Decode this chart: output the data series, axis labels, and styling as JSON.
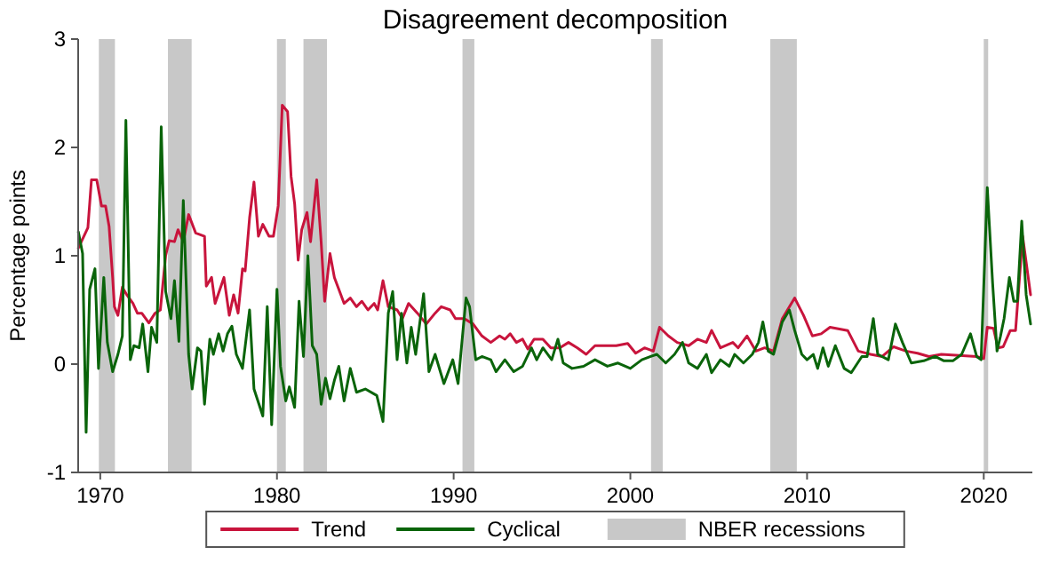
{
  "chart_data": {
    "type": "line",
    "title": "Disagreement decomposition",
    "ylabel": "Percentage points",
    "xlim": [
      1968.75,
      2022.75
    ],
    "ylim": [
      -1,
      3
    ],
    "xticks": [
      1970,
      1980,
      1990,
      2000,
      2010,
      2020
    ],
    "yticks": [
      -1,
      0,
      1,
      2,
      3
    ],
    "grid": false,
    "legend": "bottom",
    "line_style": "solid",
    "marker": "none",
    "bands": [
      {
        "axis": "x",
        "from": 1969.92,
        "to": 1970.83,
        "label": "NBER recessions",
        "color": "#c8c8c8"
      },
      {
        "axis": "x",
        "from": 1973.83,
        "to": 1975.17,
        "color": "#c8c8c8"
      },
      {
        "axis": "x",
        "from": 1980.0,
        "to": 1980.5,
        "color": "#c8c8c8"
      },
      {
        "axis": "x",
        "from": 1981.5,
        "to": 1982.83,
        "color": "#c8c8c8"
      },
      {
        "axis": "x",
        "from": 1990.5,
        "to": 1991.17,
        "color": "#c8c8c8"
      },
      {
        "axis": "x",
        "from": 2001.17,
        "to": 2001.83,
        "color": "#c8c8c8"
      },
      {
        "axis": "x",
        "from": 2007.92,
        "to": 2009.42,
        "color": "#c8c8c8"
      },
      {
        "axis": "x",
        "from": 2020.0,
        "to": 2020.25,
        "color": "#c8c8c8"
      }
    ],
    "series": [
      {
        "name": "Trend",
        "color": "#c8143c",
        "x": [
          1968.76,
          1969.3,
          1969.5,
          1969.8,
          1970.07,
          1970.3,
          1970.5,
          1970.7,
          1970.8,
          1971.0,
          1971.25,
          1971.5,
          1971.85,
          1972.1,
          1972.35,
          1972.75,
          1973.1,
          1973.4,
          1973.7,
          1973.9,
          1974.2,
          1974.4,
          1974.7,
          1975.0,
          1975.4,
          1975.9,
          1976.0,
          1976.3,
          1976.5,
          1977.0,
          1977.3,
          1977.55,
          1977.8,
          1978.05,
          1978.2,
          1978.45,
          1978.7,
          1978.95,
          1979.2,
          1979.55,
          1979.8,
          1980.07,
          1980.3,
          1980.6,
          1980.8,
          1981.0,
          1981.2,
          1981.4,
          1981.7,
          1981.9,
          1982.25,
          1982.5,
          1982.7,
          1983.0,
          1983.25,
          1983.5,
          1983.8,
          1984.15,
          1984.5,
          1984.8,
          1985.15,
          1985.5,
          1985.7,
          1986.0,
          1986.3,
          1986.8,
          1987.1,
          1987.45,
          1987.95,
          1988.45,
          1988.95,
          1989.3,
          1989.8,
          1990.1,
          1990.6,
          1991.1,
          1991.6,
          1992.1,
          1992.6,
          1992.9,
          1993.2,
          1993.55,
          1993.9,
          1994.2,
          1994.55,
          1995.05,
          1995.5,
          1996.0,
          1996.5,
          1997.0,
          1997.5,
          1998.0,
          1998.5,
          1999.2,
          1999.85,
          2000.3,
          2000.8,
          2001.3,
          2001.65,
          2002.15,
          2002.65,
          2003.3,
          2003.8,
          2004.3,
          2004.6,
          2005.1,
          2005.8,
          2006.1,
          2006.6,
          2007.1,
          2007.6,
          2008.1,
          2008.6,
          2009.3,
          2009.8,
          2010.3,
          2010.8,
          2011.3,
          2012.3,
          2012.9,
          2013.6,
          2014.25,
          2014.9,
          2015.6,
          2016.25,
          2016.9,
          2017.6,
          2018.6,
          2019.6,
          2020.0,
          2020.2,
          2020.55,
          2020.8,
          2021.1,
          2021.5,
          2021.8,
          2022.2,
          2022.65
        ],
        "values": [
          1.07,
          1.26,
          1.7,
          1.7,
          1.46,
          1.46,
          1.27,
          0.8,
          0.53,
          0.45,
          0.71,
          0.64,
          0.56,
          0.47,
          0.47,
          0.38,
          0.47,
          0.5,
          1.0,
          1.14,
          1.13,
          1.24,
          1.13,
          1.38,
          1.21,
          1.18,
          0.72,
          0.8,
          0.56,
          0.8,
          0.45,
          0.64,
          0.47,
          0.88,
          0.86,
          1.35,
          1.68,
          1.18,
          1.29,
          1.18,
          1.18,
          1.46,
          2.39,
          2.33,
          1.73,
          1.48,
          0.96,
          1.24,
          1.4,
          1.13,
          1.7,
          1.13,
          0.58,
          1.02,
          0.8,
          0.69,
          0.56,
          0.61,
          0.53,
          0.58,
          0.5,
          0.56,
          0.5,
          0.77,
          0.53,
          0.5,
          0.42,
          0.56,
          0.47,
          0.37,
          0.47,
          0.53,
          0.5,
          0.42,
          0.42,
          0.37,
          0.26,
          0.2,
          0.26,
          0.23,
          0.28,
          0.2,
          0.23,
          0.14,
          0.23,
          0.23,
          0.15,
          0.15,
          0.2,
          0.15,
          0.09,
          0.17,
          0.17,
          0.17,
          0.19,
          0.1,
          0.15,
          0.12,
          0.34,
          0.26,
          0.2,
          0.17,
          0.23,
          0.2,
          0.31,
          0.15,
          0.2,
          0.15,
          0.26,
          0.12,
          0.15,
          0.12,
          0.42,
          0.61,
          0.45,
          0.26,
          0.28,
          0.34,
          0.31,
          0.12,
          0.09,
          0.07,
          0.16,
          0.12,
          0.1,
          0.07,
          0.09,
          0.08,
          0.07,
          0.05,
          0.34,
          0.33,
          0.15,
          0.16,
          0.31,
          0.31,
          1.18,
          0.64
        ]
      },
      {
        "name": "Cyclical",
        "color": "#0a640a",
        "x": [
          1968.76,
          1969.0,
          1969.2,
          1969.4,
          1969.7,
          1969.9,
          1970.2,
          1970.4,
          1970.7,
          1971.0,
          1971.25,
          1971.45,
          1971.7,
          1971.9,
          1972.2,
          1972.4,
          1972.7,
          1972.9,
          1973.2,
          1973.45,
          1973.7,
          1974.0,
          1974.2,
          1974.45,
          1974.7,
          1975.0,
          1975.2,
          1975.5,
          1975.7,
          1975.9,
          1976.2,
          1976.4,
          1976.7,
          1976.95,
          1977.2,
          1977.45,
          1977.7,
          1978.05,
          1978.45,
          1978.7,
          1979.2,
          1979.45,
          1979.7,
          1980.0,
          1980.2,
          1980.5,
          1980.7,
          1981.0,
          1981.25,
          1981.5,
          1981.75,
          1982.0,
          1982.25,
          1982.5,
          1982.75,
          1983.0,
          1983.25,
          1983.5,
          1983.8,
          1984.15,
          1984.5,
          1985.0,
          1985.65,
          1986.0,
          1986.3,
          1986.55,
          1986.8,
          1987.05,
          1987.35,
          1987.6,
          1987.85,
          1988.3,
          1988.6,
          1988.95,
          1989.45,
          1989.95,
          1990.25,
          1990.7,
          1990.9,
          1991.25,
          1991.6,
          1992.1,
          1992.4,
          1992.9,
          1993.4,
          1993.9,
          1994.4,
          1994.7,
          1995.05,
          1995.55,
          1995.9,
          1996.2,
          1996.7,
          1997.35,
          1998.0,
          1998.7,
          1999.3,
          2000.0,
          2000.65,
          2001.15,
          2001.5,
          2002.0,
          2002.5,
          2002.95,
          2003.3,
          2003.8,
          2004.3,
          2004.6,
          2005.1,
          2005.6,
          2005.9,
          2006.4,
          2006.9,
          2007.25,
          2007.5,
          2007.8,
          2008.1,
          2008.6,
          2009.0,
          2009.3,
          2009.7,
          2010.0,
          2010.35,
          2010.6,
          2010.9,
          2011.2,
          2011.6,
          2012.1,
          2012.5,
          2013.1,
          2013.4,
          2013.75,
          2014.0,
          2014.6,
          2015.0,
          2015.4,
          2015.9,
          2016.6,
          2017.25,
          2017.75,
          2018.25,
          2018.75,
          2019.25,
          2019.6,
          2019.85,
          2020.2,
          2020.5,
          2020.75,
          2020.95,
          2021.15,
          2021.45,
          2021.7,
          2021.9,
          2022.15,
          2022.4,
          2022.65
        ],
        "values": [
          1.22,
          1.02,
          -0.63,
          0.69,
          0.88,
          -0.04,
          0.8,
          0.2,
          -0.07,
          0.09,
          0.26,
          2.25,
          0.04,
          0.17,
          0.15,
          0.37,
          -0.07,
          0.34,
          0.2,
          2.19,
          0.67,
          0.42,
          0.77,
          0.21,
          1.51,
          0.09,
          -0.23,
          0.15,
          0.12,
          -0.37,
          0.23,
          0.09,
          0.28,
          0.12,
          0.28,
          0.35,
          0.09,
          -0.04,
          0.5,
          -0.23,
          -0.48,
          0.53,
          -0.56,
          0.69,
          -0.02,
          -0.34,
          -0.21,
          -0.4,
          0.58,
          0.07,
          1.0,
          0.17,
          0.09,
          -0.37,
          -0.13,
          -0.32,
          -0.15,
          -0.02,
          -0.34,
          -0.04,
          -0.26,
          -0.23,
          -0.29,
          -0.53,
          0.47,
          0.67,
          0.04,
          0.47,
          0.01,
          0.34,
          0.09,
          0.65,
          -0.07,
          0.09,
          -0.18,
          0.04,
          -0.18,
          0.61,
          0.53,
          0.04,
          0.07,
          0.04,
          -0.07,
          0.04,
          -0.07,
          -0.02,
          0.15,
          0.04,
          0.15,
          0.04,
          0.23,
          0.01,
          -0.04,
          -0.02,
          0.04,
          -0.02,
          0.01,
          -0.04,
          0.04,
          0.07,
          0.09,
          0.01,
          0.09,
          0.2,
          0.01,
          -0.04,
          0.09,
          -0.08,
          0.04,
          -0.02,
          0.09,
          0.01,
          0.09,
          0.2,
          0.39,
          0.12,
          0.09,
          0.39,
          0.5,
          0.31,
          0.09,
          0.04,
          0.09,
          -0.04,
          0.15,
          -0.02,
          0.17,
          -0.04,
          -0.08,
          0.07,
          0.07,
          0.42,
          0.09,
          0.04,
          0.37,
          0.2,
          0.01,
          0.03,
          0.07,
          0.03,
          0.03,
          0.09,
          0.28,
          0.07,
          0.04,
          1.63,
          0.75,
          0.12,
          0.26,
          0.42,
          0.8,
          0.58,
          0.58,
          1.32,
          0.64,
          0.37
        ]
      }
    ]
  }
}
